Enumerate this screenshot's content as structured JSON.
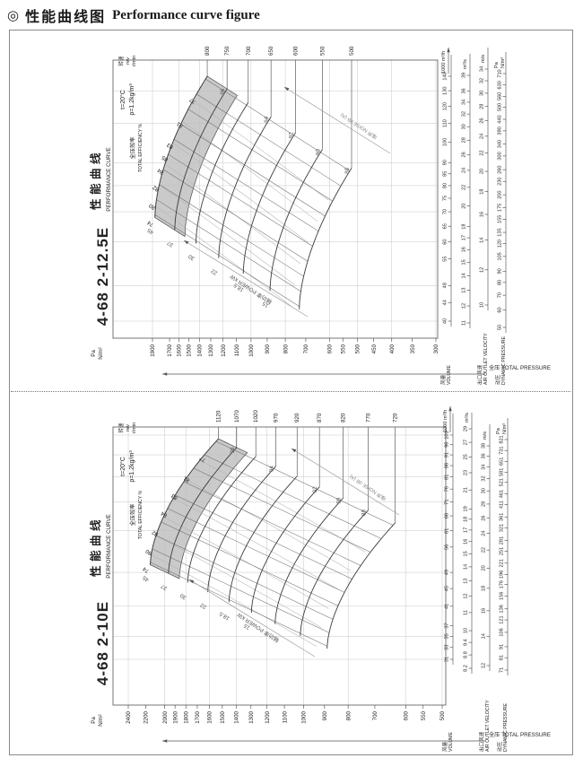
{
  "page": {
    "bullet": "◎",
    "title_cn": "性能曲线图",
    "title_en": "Performance curve figure"
  },
  "colors": {
    "band": "#bdbdbd",
    "ink": "#222222",
    "grid": "#c7c7c7"
  },
  "chart_data": [
    {
      "type": "line",
      "model": "4-68 2-12.5E",
      "series_label": "fan pressure-volume curves per rotation speed",
      "header": {
        "curve_cn": "性能曲线",
        "curve_en": "PERFORMANCE CURVE",
        "cond_t": "t=20°C",
        "cond_rho": "ρ=1.2kg/m³",
        "eff_cn": "全压效率",
        "eff_en": "TOTAL EFFICIENCY %",
        "speed_cn": "转速",
        "speed_en": "rev",
        "speed_unit": "r/min"
      },
      "pressure_axis": {
        "unit_top": "Pa",
        "unit_bottom": "N/m²",
        "label": "全压 TOTAL PRESSURE",
        "ticks": [
          1900,
          1700,
          1600,
          1500,
          1400,
          1300,
          1200,
          1100,
          1000,
          900,
          800,
          700,
          600,
          550,
          500,
          450,
          400,
          350,
          300
        ]
      },
      "rev_ticks": [
        800,
        750,
        700,
        650,
        600,
        550,
        500
      ],
      "volume_axis": {
        "label_cn": "风量",
        "label_en": "VOLUME",
        "unit": "1000 m³/h",
        "ticks": [
          40,
          44,
          48,
          55,
          60,
          65,
          70,
          75,
          80,
          85,
          90,
          100,
          110,
          120,
          130,
          140
        ]
      },
      "flow_axis": {
        "unit": "m³/s",
        "ticks": [
          11,
          12,
          13,
          14,
          15,
          16,
          17,
          18,
          20,
          22,
          24,
          26,
          28,
          30,
          32,
          34,
          36,
          39
        ]
      },
      "velocity_axis": {
        "label_cn": "出口风速",
        "label_en": "AIR OUTLET VELOCITY",
        "unit": "m/s",
        "ticks": [
          10,
          12,
          14,
          16,
          18,
          20,
          22,
          24,
          26,
          28,
          30,
          32,
          34
        ]
      },
      "dynamic_axis": {
        "label_cn": "动压",
        "label_en": "DYNAMIC PRESSURE",
        "unit_top": "Pa",
        "unit_bottom": "N/m²",
        "ticks": [
          50,
          60,
          70,
          80,
          90,
          105,
          120,
          135,
          155,
          175,
          200,
          230,
          260,
          300,
          340,
          390,
          440,
          500,
          560,
          630,
          710
        ]
      },
      "efficiency_labels": [
        74,
        80,
        82,
        84,
        85,
        83,
        81,
        77
      ],
      "power": {
        "display": "轴功率 POWER kW",
        "values": [
          "45",
          "37",
          "30",
          "22",
          "18.5",
          "15"
        ]
      },
      "noise": {
        "display": "噪声 NOISE dB (A)",
        "values": [
          96,
          94,
          92,
          90,
          88
        ]
      }
    },
    {
      "type": "line",
      "model": "4-68 2-10E",
      "series_label": "fan pressure-volume curves per rotation speed",
      "header": {
        "curve_cn": "性能曲线",
        "curve_en": "PERFORMANCE CURVE",
        "cond_t": "t=20°C",
        "cond_rho": "ρ=1.2kg/m³",
        "eff_cn": "全压效率",
        "eff_en": "TOTAL EFFICIENCY %",
        "speed_cn": "转速",
        "speed_en": "rev",
        "speed_unit": "r/min"
      },
      "pressure_axis": {
        "unit_top": "Pa",
        "unit_bottom": "N/m²",
        "label": "全压 TOTAL PRESSURE",
        "ticks": [
          2400,
          2200,
          2000,
          1900,
          1800,
          1700,
          1600,
          1500,
          1400,
          1300,
          1200,
          1100,
          1000,
          900,
          800,
          700,
          600,
          550,
          500
        ]
      },
      "rev_ticks": [
        1120,
        1070,
        1020,
        970,
        920,
        870,
        820,
        770,
        720
      ],
      "volume_axis": {
        "label_cn": "风量",
        "label_en": "VOLUME",
        "unit": "1000 m³/h",
        "ticks": [
          31,
          33,
          35,
          37,
          41,
          45,
          49,
          56,
          61,
          66,
          71,
          76,
          81,
          86,
          91,
          96,
          101
        ]
      },
      "flow_axis": {
        "unit": "m³/s",
        "ticks": [
          8.2,
          8.8,
          9.4,
          10,
          11,
          12,
          13,
          14,
          15,
          16,
          17,
          18,
          19,
          21,
          23,
          25,
          27,
          29
        ]
      },
      "velocity_axis": {
        "label_cn": "出口风速",
        "label_en": "AIR OUTLET VELOCITY",
        "unit": "m/s",
        "ticks": [
          12,
          14,
          16,
          18,
          20,
          22,
          24,
          26,
          28,
          30,
          32,
          34,
          36,
          38
        ]
      },
      "dynamic_axis": {
        "label_cn": "动压",
        "label_en": "DYNAMIC PRESSURE",
        "unit_top": "Pa",
        "unit_bottom": "N/m²",
        "ticks": [
          71,
          81,
          91,
          106,
          121,
          136,
          156,
          176,
          196,
          221,
          251,
          281,
          321,
          361,
          411,
          461,
          521,
          581,
          651,
          731,
          821
        ]
      },
      "efficiency_labels": [
        74,
        80,
        82,
        84,
        83,
        81,
        77
      ],
      "power": {
        "display": "轴功率 POWER kW",
        "values": [
          "45",
          "37",
          "30",
          "22",
          "18.5",
          "15"
        ]
      },
      "noise": {
        "display": "噪声 NOISE dB (A)",
        "values": [
          96,
          94,
          92,
          90,
          88
        ]
      }
    }
  ]
}
